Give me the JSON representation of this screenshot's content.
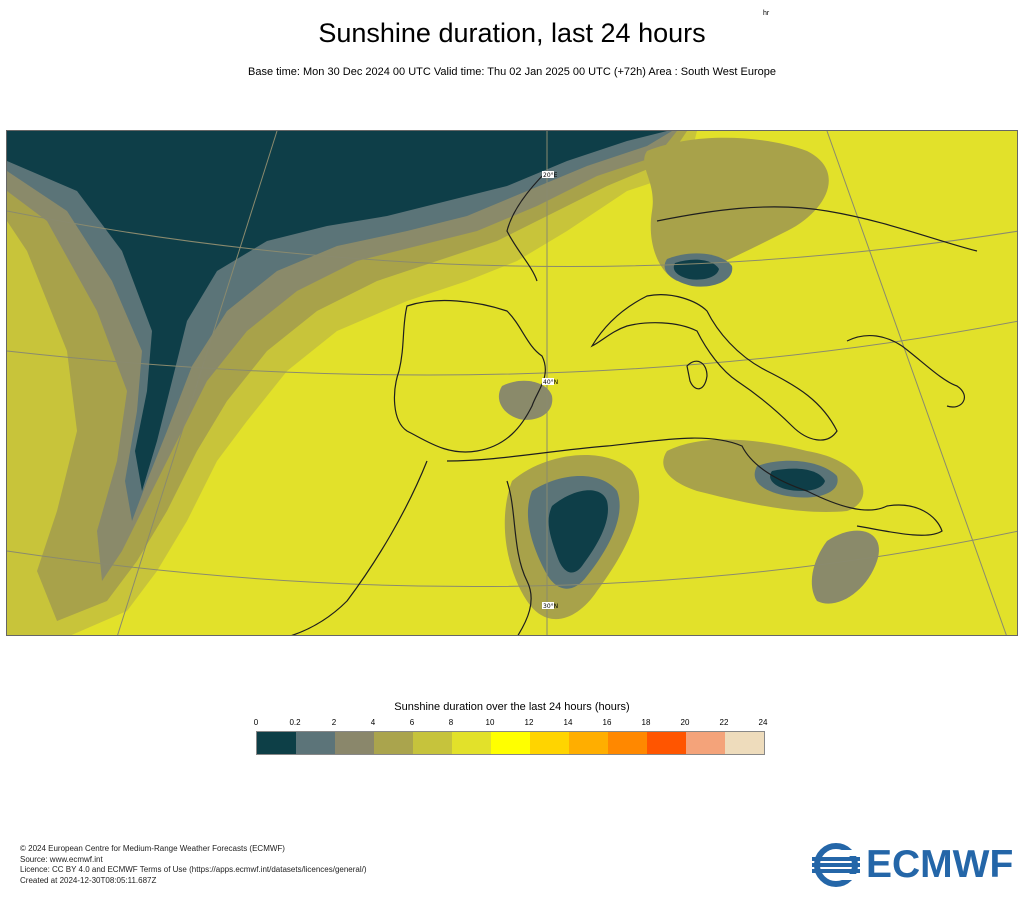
{
  "header": {
    "title": "Sunshine duration, last 24 hours",
    "subtitle": "Base time: Mon 30 Dec 2024 00 UTC Valid time: Thu 02 Jan 2025 00 UTC (+72h) Area : South West Europe"
  },
  "map": {
    "region": "South West Europe",
    "point_labels": [
      "20°E",
      "40°N",
      "30°N"
    ],
    "colors": {
      "ocean_dark": "#0e3e48",
      "band_1": "#5b7478",
      "band_2": "#8a8a6a",
      "band_3": "#a8a24a",
      "band_4": "#c8c43a",
      "sunny": "#e2e12a",
      "coast": "#1e1e1e",
      "grid": "#8a8a6e"
    }
  },
  "legend": {
    "title": "Sunshine duration over the last 24 hours (hours)",
    "unit": "hr",
    "ticks": [
      "0",
      "0.2",
      "2",
      "4",
      "6",
      "8",
      "10",
      "12",
      "14",
      "16",
      "18",
      "20",
      "22",
      "24"
    ],
    "colors": [
      "#0d3f47",
      "#5c7479",
      "#8a876b",
      "#aaa44d",
      "#c6c33c",
      "#e2e12a",
      "#ffff00",
      "#ffd400",
      "#ffae00",
      "#ff8800",
      "#ff5500",
      "#f4a37a",
      "#eedcbc"
    ]
  },
  "footer": {
    "lines": [
      "© 2024 European Centre for Medium-Range Weather Forecasts (ECMWF)",
      "Source: www.ecmwf.int",
      "Licence: CC BY 4.0 and ECMWF Terms of Use (https://apps.ecmwf.int/datasets/licences/general/)",
      "Created at 2024-12-30T08:05:11.687Z"
    ]
  },
  "logo": {
    "text": "ECMWF",
    "color": "#2466a8"
  }
}
